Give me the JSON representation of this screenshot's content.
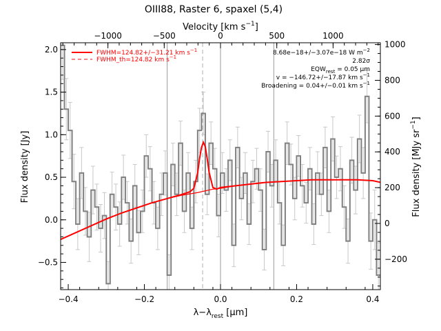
{
  "chart_data": {
    "type": "line",
    "title": "OIII88, Raster 6, spaxel (5,4)",
    "xlabel_bottom": "λ−λ",
    "xlabel_bottom_sub": "rest",
    "xlabel_bottom_unit": " [μm]",
    "xlabel_top": "Velocity [km s",
    "xlabel_top_sup": "−1",
    "xlabel_top_end": "]",
    "ylabel_left": "Flux density [Jy]",
    "ylabel_right": "Flux density [MJy sr",
    "ylabel_right_sup": "−1",
    "ylabel_right_end": "]",
    "xlim": [
      -0.42,
      0.42
    ],
    "ylim_left": [
      -0.82,
      2.08
    ],
    "ylim_right": [
      -370,
      1010
    ],
    "velocity_lim": [
      -1420,
      1420
    ],
    "x_ticks": [
      -0.4,
      -0.2,
      0.0,
      0.2,
      0.4
    ],
    "x_tick_labels": [
      "−0.4",
      "−0.2",
      "0.0",
      "0.2",
      "0.4"
    ],
    "y_ticks_left": [
      -0.5,
      0.0,
      0.5,
      1.0,
      1.5,
      2.0
    ],
    "y_tick_labels_left": [
      "−0.5",
      "0.0",
      "0.5",
      "1.0",
      "1.5",
      "2.0"
    ],
    "y_ticks_right": [
      -200,
      0,
      200,
      400,
      600,
      800,
      1000
    ],
    "y_tick_labels_right": [
      "−200",
      "0",
      "200",
      "400",
      "600",
      "800",
      "1000"
    ],
    "velocity_ticks": [
      -1000,
      -500,
      0,
      500,
      1000
    ],
    "velocity_tick_labels": [
      "−1000",
      "−500",
      "0",
      "500",
      "1000"
    ],
    "vertical_lines_solid": [
      -0.14,
      0.0,
      0.14
    ],
    "vertical_line_dashed": -0.047,
    "legend": [
      {
        "label": "FWHM=124.82+/−31.21 km s",
        "sup": "−1",
        "style": "solid",
        "color": "#ff0000"
      },
      {
        "label": "FWHM_th=124.82 km s",
        "sup": "−1",
        "style": "dashed",
        "color": "#ff0000"
      }
    ],
    "annotations": [
      {
        "text": "8.68e−18+/−3.07e−18 W m",
        "sup": "−2",
        "sub": ""
      },
      {
        "text": "2.82σ",
        "sup": "",
        "sub": ""
      },
      {
        "text": "EQW",
        "sub": "rest",
        "tail": " = 0.05 μm",
        "sup": ""
      },
      {
        "text": "v = −146.72+/−17.87 km s",
        "sup": "−1",
        "sub": ""
      },
      {
        "text": "Broadening = 0.04+/−0.01 km s",
        "sup": "−1",
        "sub": ""
      }
    ],
    "series": [
      {
        "style": "step",
        "color": "#808080",
        "x": [
          -0.42,
          -0.41,
          -0.4,
          -0.39,
          -0.38,
          -0.37,
          -0.36,
          -0.35,
          -0.34,
          -0.33,
          -0.32,
          -0.31,
          -0.3,
          -0.29,
          -0.28,
          -0.27,
          -0.26,
          -0.25,
          -0.24,
          -0.23,
          -0.22,
          -0.21,
          -0.2,
          -0.19,
          -0.18,
          -0.17,
          -0.16,
          -0.15,
          -0.14,
          -0.13,
          -0.12,
          -0.11,
          -0.1,
          -0.09,
          -0.08,
          -0.07,
          -0.06,
          -0.05,
          -0.04,
          -0.03,
          -0.02,
          -0.01,
          0.0,
          0.01,
          0.02,
          0.03,
          0.04,
          0.05,
          0.06,
          0.07,
          0.08,
          0.09,
          0.1,
          0.11,
          0.12,
          0.13,
          0.14,
          0.15,
          0.16,
          0.17,
          0.18,
          0.19,
          0.2,
          0.21,
          0.22,
          0.23,
          0.24,
          0.25,
          0.26,
          0.27,
          0.28,
          0.29,
          0.3,
          0.31,
          0.32,
          0.33,
          0.34,
          0.35,
          0.36,
          0.37,
          0.38,
          0.39,
          0.4,
          0.41
        ],
        "y": [
          2.05,
          1.3,
          1.05,
          0.45,
          -0.05,
          0.55,
          0.1,
          -0.2,
          0.35,
          0.15,
          -0.1,
          0.05,
          -0.75,
          0.3,
          0.15,
          -0.05,
          0.5,
          0.2,
          -0.25,
          0.4,
          -0.15,
          0.1,
          0.75,
          0.6,
          0.2,
          -0.1,
          0.3,
          0.55,
          -0.65,
          0.65,
          0.3,
          0.9,
          0.1,
          0.55,
          -0.1,
          0.45,
          1.05,
          1.25,
          0.3,
          0.9,
          0.6,
          0.05,
          0.55,
          0.35,
          0.7,
          -0.3,
          0.85,
          0.25,
          0.55,
          -0.05,
          0.45,
          0.6,
          0.35,
          -0.35,
          0.8,
          0.4,
          0.7,
          0.2,
          -0.3,
          0.9,
          0.65,
          0.25,
          0.75,
          0.4,
          0.2,
          0.6,
          -0.05,
          0.55,
          0.3,
          0.85,
          0.1,
          0.95,
          0.5,
          0.6,
          0.15,
          -0.25,
          0.7,
          0.35,
          0.95,
          0.55,
          1.45,
          -0.25,
          0.0,
          -0.65
        ],
        "err": [
          0.4,
          0.36,
          0.33,
          0.32,
          0.3,
          0.3,
          0.28,
          0.29,
          0.28,
          0.27,
          0.28,
          0.27,
          0.26,
          0.26,
          0.27,
          0.26,
          0.26,
          0.25,
          0.26,
          0.25,
          0.26,
          0.25,
          0.25,
          0.26,
          0.25,
          0.25,
          0.25,
          0.26,
          0.24,
          0.25,
          0.25,
          0.26,
          0.25,
          0.24,
          0.25,
          0.25,
          0.26,
          0.25,
          0.24,
          0.25,
          0.24,
          0.25,
          0.24,
          0.25,
          0.24,
          0.25,
          0.24,
          0.25,
          0.24,
          0.24,
          0.25,
          0.24,
          0.25,
          0.24,
          0.24,
          0.25,
          0.24,
          0.25,
          0.24,
          0.25,
          0.24,
          0.25,
          0.24,
          0.25,
          0.24,
          0.25,
          0.24,
          0.25,
          0.25,
          0.24,
          0.25,
          0.26,
          0.25,
          0.26,
          0.25,
          0.26,
          0.27,
          0.28,
          0.28,
          0.3,
          0.31,
          0.33,
          0.35,
          0.38
        ]
      },
      {
        "name": "FWHM=124.82+/−31.21 km s−1",
        "style": "line",
        "color": "#ff0000",
        "x": [
          -0.42,
          -0.38,
          -0.34,
          -0.3,
          -0.26,
          -0.22,
          -0.18,
          -0.14,
          -0.1,
          -0.08,
          -0.07,
          -0.06,
          -0.055,
          -0.05,
          -0.045,
          -0.04,
          -0.035,
          -0.03,
          -0.02,
          -0.01,
          0.0,
          0.04,
          0.08,
          0.12,
          0.16,
          0.2,
          0.24,
          0.28,
          0.32,
          0.36,
          0.4,
          0.42
        ],
        "y": [
          -0.23,
          -0.15,
          -0.07,
          0.01,
          0.08,
          0.14,
          0.2,
          0.25,
          0.3,
          0.33,
          0.37,
          0.55,
          0.72,
          0.85,
          0.91,
          0.86,
          0.72,
          0.56,
          0.38,
          0.36,
          0.38,
          0.4,
          0.42,
          0.44,
          0.45,
          0.46,
          0.47,
          0.47,
          0.47,
          0.47,
          0.46,
          0.44
        ]
      },
      {
        "style": "line",
        "color": "#ff0000",
        "x": [
          -0.42,
          -0.38,
          -0.34,
          -0.3,
          -0.26,
          -0.22,
          -0.18,
          -0.14,
          -0.1,
          -0.06,
          -0.02,
          0.0,
          0.04,
          0.08,
          0.12,
          0.16,
          0.2,
          0.24,
          0.28,
          0.32,
          0.36,
          0.4,
          0.42
        ],
        "y": [
          -0.23,
          -0.15,
          -0.07,
          0.01,
          0.08,
          0.14,
          0.2,
          0.25,
          0.29,
          0.32,
          0.36,
          0.37,
          0.4,
          0.42,
          0.44,
          0.45,
          0.46,
          0.47,
          0.47,
          0.47,
          0.47,
          0.46,
          0.44
        ]
      }
    ]
  }
}
